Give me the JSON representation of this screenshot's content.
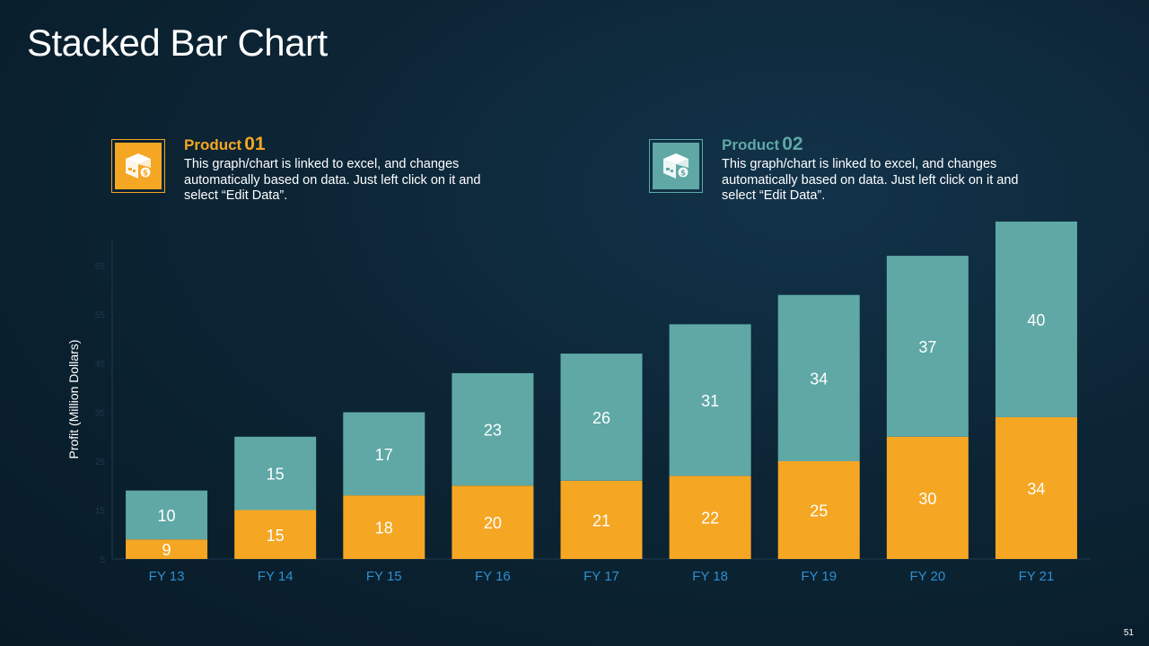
{
  "title": "Stacked Bar Chart",
  "legend": [
    {
      "label": "Product",
      "number": "01",
      "color": "#f5a623",
      "icon": "box-money-icon",
      "description": "This graph/chart is linked to excel, and changes automatically based on data. Just left click on it and select “Edit Data”."
    },
    {
      "label": "Product",
      "number": "02",
      "color": "#5fa8a6",
      "icon": "box-money-icon",
      "description": "This graph/chart is linked to excel, and changes automatically based on data. Just left click on it and select “Edit Data”."
    }
  ],
  "chart_data": {
    "type": "bar",
    "stacked": true,
    "categories": [
      "FY 13",
      "FY 14",
      "FY 15",
      "FY 16",
      "FY 17",
      "FY 18",
      "FY 19",
      "FY 20",
      "FY 21"
    ],
    "series": [
      {
        "name": "Product 01",
        "color": "#f5a623",
        "values": [
          9,
          15,
          18,
          20,
          21,
          22,
          25,
          30,
          34
        ]
      },
      {
        "name": "Product 02",
        "color": "#5fa8a6",
        "values": [
          10,
          15,
          17,
          23,
          26,
          31,
          34,
          37,
          40
        ]
      }
    ],
    "ylabel": "Profit  (Million Dollars)",
    "yticks": [
      5,
      15,
      25,
      35,
      45,
      55,
      65
    ],
    "ylim": [
      5,
      70
    ],
    "tick_label_color": "#2f8fd0",
    "axis_color": "#1e3a50",
    "grid": false
  },
  "page_number": "51"
}
